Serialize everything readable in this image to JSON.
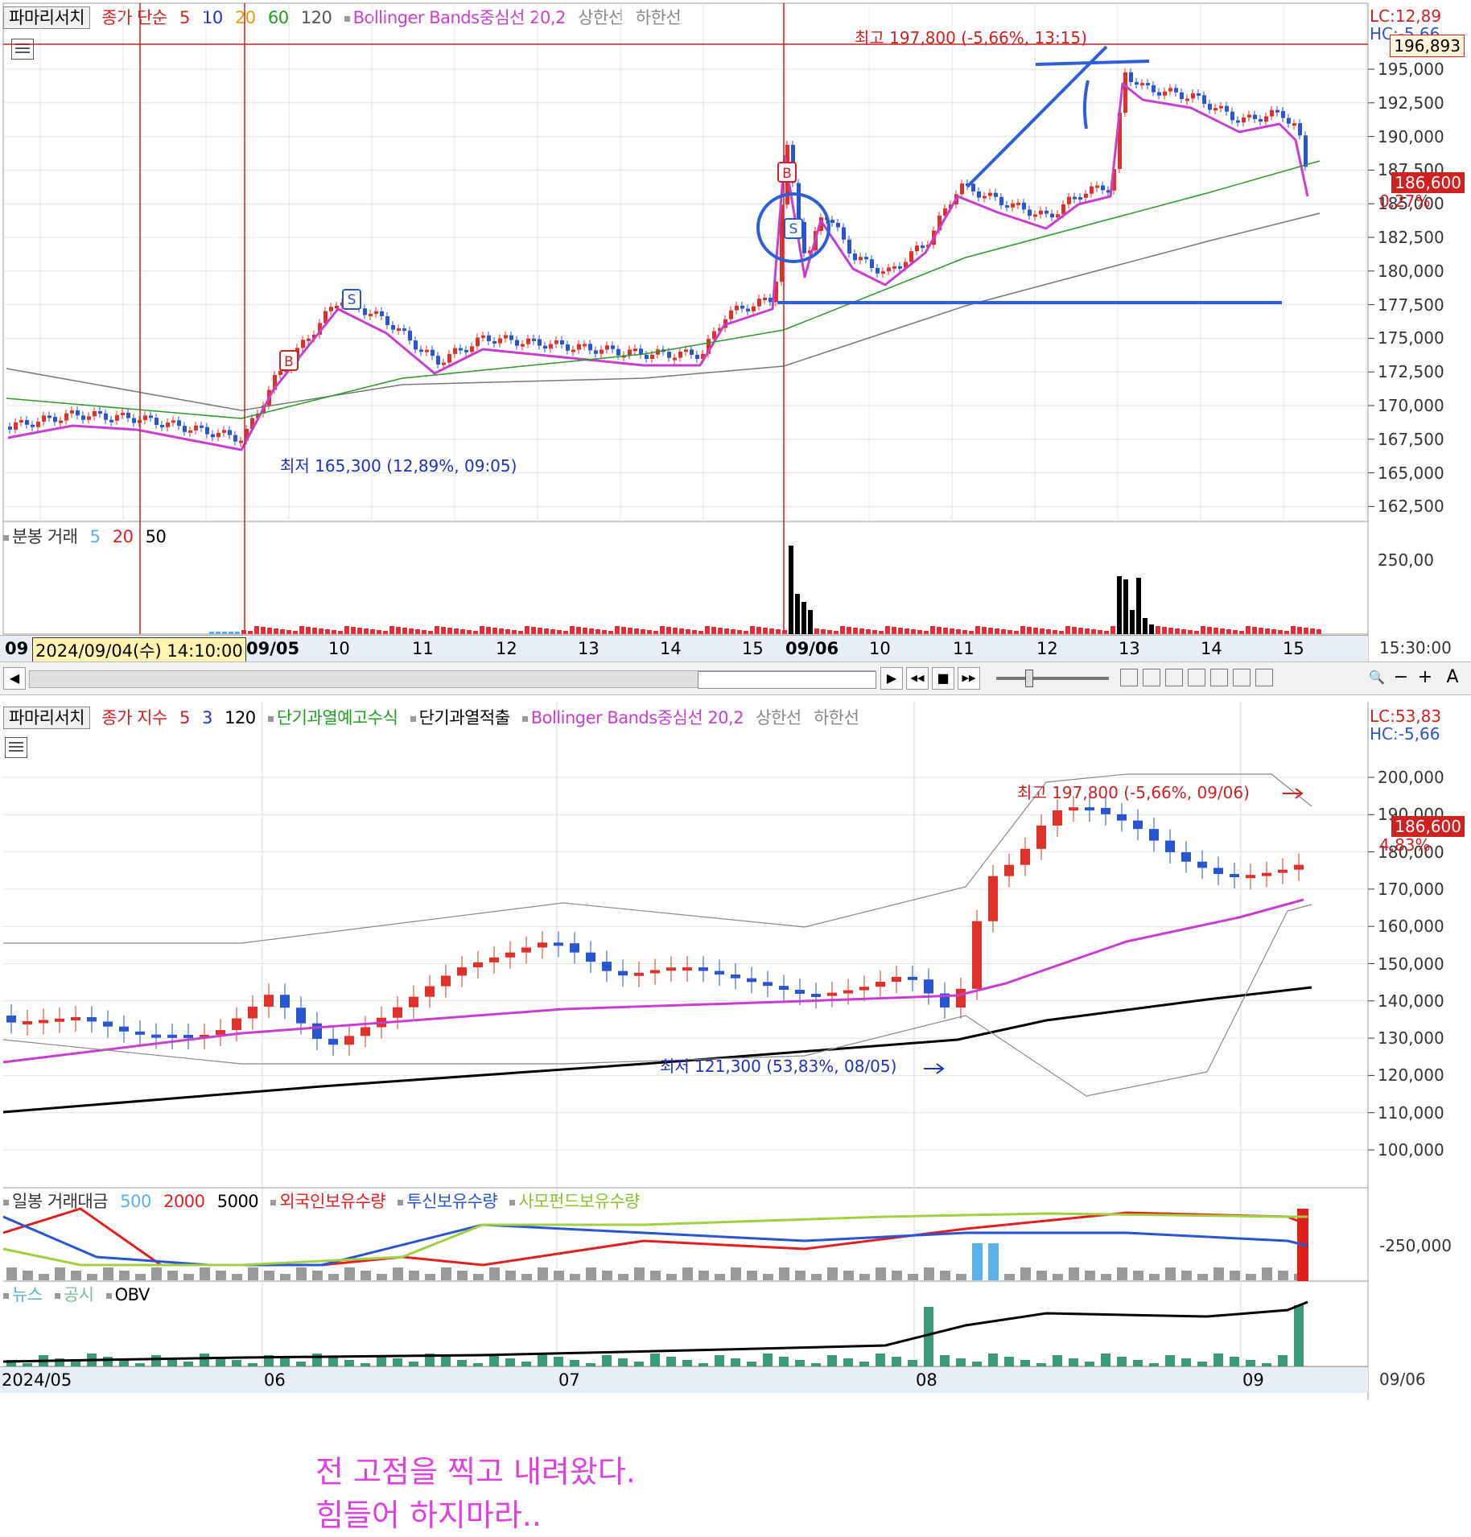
{
  "top_chart": {
    "legend": {
      "menu": "파마리서치",
      "ma_label": "종가 단순",
      "ma_periods": [
        "5",
        "10",
        "20",
        "60",
        "120"
      ],
      "bb_label": "Bollinger Bands중심선 20,2",
      "upper": "상한선",
      "lower": "하한선"
    },
    "lc": "LC:12,89",
    "hc": "HC:-5,66",
    "price_ticks": [
      "195,000",
      "192,500",
      "190,000",
      "187,500",
      "185,000",
      "182,500",
      "180,000",
      "177,500",
      "175,000",
      "172,500",
      "170,000",
      "167,500",
      "165,000",
      "162,500"
    ],
    "high_line_value": "196,893",
    "current_price": "186,600",
    "change": "0,27%",
    "max_label": "최고 197,800 (-5,66%, 13:15)",
    "min_label": "최저 165,300 (12,89%, 09:05)",
    "marker_b": "B",
    "marker_s": "S",
    "volume_legend": {
      "label": "분봉 거래",
      "periods": [
        "5",
        "20",
        "50"
      ]
    },
    "volume_tick": "250,00",
    "x_labels": [
      "09",
      "09/05",
      "10",
      "11",
      "12",
      "13",
      "14",
      "15",
      "09/06",
      "10",
      "11",
      "12",
      "13",
      "14",
      "15"
    ],
    "cursor_time": "2024/09/04(수) 14:10:00",
    "last_time": "15:30:00"
  },
  "toolbar": {
    "buttons": [
      "▶",
      "◀◀",
      "■",
      "▶▶"
    ],
    "zoom_out": "−",
    "zoom_in": "+",
    "text_tool": "A",
    "search": "🔍",
    "scroll_left": "◀"
  },
  "bottom_chart": {
    "legend": {
      "menu": "파마리서치",
      "ma_label": "종가 지수",
      "ma_periods": [
        "5",
        "3",
        "120"
      ],
      "ind1": "단기과열예고수식",
      "ind2": "단기과열적출",
      "bb_label": "Bollinger Bands중심선 20,2",
      "upper": "상한선",
      "lower": "하한선"
    },
    "lc": "LC:53,83",
    "hc": "HC:-5,66",
    "price_ticks": [
      "200,000",
      "190,000",
      "180,000",
      "170,000",
      "160,000",
      "150,000",
      "140,000",
      "130,000",
      "120,000",
      "110,000",
      "100,000"
    ],
    "current_price": "186,600",
    "change": "4,83%",
    "max_label": "최고 197,800 (-5,66%, 09/06)",
    "min_label": "최저 121,300 (53,83%, 08/05)",
    "annotation": [
      "전 고점을 찍고 내려왔다.",
      "힘들어 하지마라.."
    ],
    "amount_legend": {
      "label": "일봉 거래대금",
      "periods": [
        "500",
        "2000",
        "5000"
      ],
      "foreign": "외국인보유수량",
      "trust": "투신보유수량",
      "pef": "사모펀드보유수량"
    },
    "amount_tick": "-250,000",
    "news_legend": {
      "news": "뉴스",
      "notice": "공시",
      "obv": "OBV"
    },
    "x_labels": [
      "2024/05",
      "06",
      "07",
      "08",
      "09"
    ],
    "last_date": "09/06"
  },
  "colors": {
    "up": "#e0302a",
    "down": "#2a55d0",
    "bb_center": "#c83fd0",
    "annotation_blue": "#2e5fd8",
    "vline": "#d02020"
  }
}
